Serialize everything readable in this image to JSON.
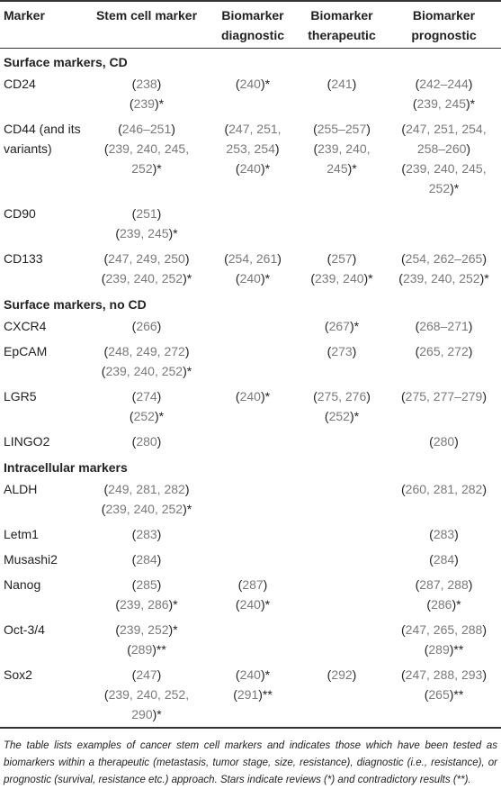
{
  "headers": [
    "Marker",
    "Stem cell marker",
    "Biomarker\ndiagnostic",
    "Biomarker\ntherapeutic",
    "Biomarker\nprognostic"
  ],
  "sections": [
    {
      "title": "Surface markers, CD",
      "rows": [
        {
          "marker": "CD24",
          "cells": [
            [
              "(238)",
              "(239)*"
            ],
            [
              "(240)*"
            ],
            [
              "(241)"
            ],
            [
              "(242–244)",
              "(239, 245)*"
            ]
          ]
        },
        {
          "marker": "CD44 (and its variants)",
          "cells": [
            [
              "(246–251)",
              "(239, 240, 245,",
              "252)*"
            ],
            [
              "(247, 251,",
              "253, 254)",
              "(240)*"
            ],
            [
              "(255–257)",
              "(239, 240,",
              "245)*"
            ],
            [
              "(247, 251, 254,",
              "258–260)",
              "(239, 240, 245,",
              "252)*"
            ]
          ]
        },
        {
          "marker": "CD90",
          "cells": [
            [
              "(251)",
              "(239, 245)*"
            ],
            [],
            [],
            []
          ]
        },
        {
          "marker": "CD133",
          "cells": [
            [
              "(247, 249, 250)",
              "(239, 240, 252)*"
            ],
            [
              "(254, 261)",
              "(240)*"
            ],
            [
              "(257)",
              "(239, 240)*"
            ],
            [
              "(254, 262–265)",
              "(239, 240, 252)*"
            ]
          ]
        }
      ]
    },
    {
      "title": "Surface markers, no CD",
      "rows": [
        {
          "marker": "CXCR4",
          "cells": [
            [
              "(266)"
            ],
            [],
            [
              "(267)*"
            ],
            [
              "(268–271)"
            ]
          ]
        },
        {
          "marker": "EpCAM",
          "cells": [
            [
              "(248, 249, 272)",
              "(239, 240, 252)*"
            ],
            [],
            [
              "(273)"
            ],
            [
              "(265, 272)"
            ]
          ]
        },
        {
          "marker": "LGR5",
          "cells": [
            [
              "(274)",
              "(252)*"
            ],
            [
              "(240)*"
            ],
            [
              "(275, 276)",
              "(252)*"
            ],
            [
              "(275, 277–279)"
            ]
          ]
        },
        {
          "marker": "LINGO2",
          "cells": [
            [
              "(280)"
            ],
            [],
            [],
            [
              "(280)"
            ]
          ]
        }
      ]
    },
    {
      "title": "Intracellular markers",
      "rows": [
        {
          "marker": "ALDH",
          "cells": [
            [
              "(249, 281, 282)",
              "(239, 240, 252)*"
            ],
            [],
            [],
            [
              "(260, 281, 282)"
            ]
          ]
        },
        {
          "marker": "Letm1",
          "cells": [
            [
              "(283)"
            ],
            [],
            [],
            [
              "(283)"
            ]
          ]
        },
        {
          "marker": "Musashi2",
          "cells": [
            [
              "(284)"
            ],
            [],
            [],
            [
              "(284)"
            ]
          ]
        },
        {
          "marker": "Nanog",
          "cells": [
            [
              "(285)",
              "(239, 286)*"
            ],
            [
              "(287)",
              "(240)*"
            ],
            [],
            [
              "(287, 288)",
              "(286)*"
            ]
          ]
        },
        {
          "marker": "Oct-3/4",
          "cells": [
            [
              "(239, 252)*",
              "(289)**"
            ],
            [],
            [],
            [
              "(247, 265, 288)",
              "(289)**"
            ]
          ]
        },
        {
          "marker": "Sox2",
          "cells": [
            [
              "(247)",
              "(239, 240, 252,",
              "290)*"
            ],
            [
              "(240)*",
              "(291)**"
            ],
            [
              "(292)"
            ],
            [
              "(247, 288, 293)",
              "(265)**"
            ]
          ]
        }
      ]
    }
  ],
  "footnote": "The table lists examples of cancer stem cell markers and indicates those which have been tested as biomarkers within a therapeutic (metastasis, tumor stage, size, resistance), diagnostic (i.e., resistance), or prognostic (survival, resistance etc.) approach. Stars indicate reviews (*) and contradictory results (**)."
}
